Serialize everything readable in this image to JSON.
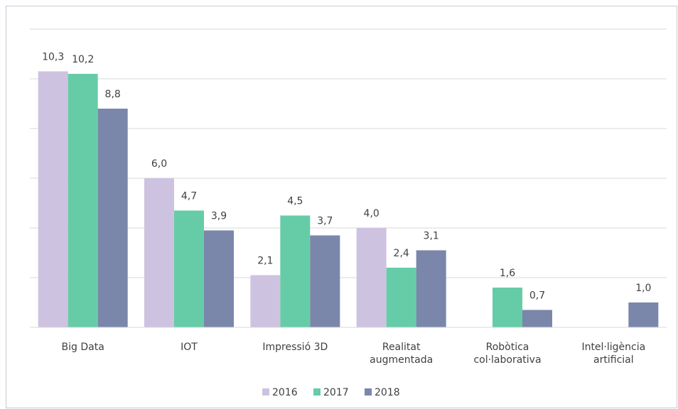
{
  "chart_data": {
    "type": "bar",
    "categories": [
      "Big Data",
      "IOT",
      "Impressió 3D",
      "Realitat augmentada",
      "Robòtica col·laborativa",
      "Intel·ligència artificial"
    ],
    "series": [
      {
        "name": "2016",
        "color": "#cdc3e0",
        "values": [
          10.3,
          6.0,
          2.1,
          4.0,
          null,
          null
        ],
        "value_labels": [
          "10,3",
          "6,0",
          "2,1",
          "4,0",
          null,
          null
        ]
      },
      {
        "name": "2017",
        "color": "#66cca8",
        "values": [
          10.2,
          4.7,
          4.5,
          2.4,
          1.6,
          null
        ],
        "value_labels": [
          "10,2",
          "4,7",
          "4,5",
          "2,4",
          "1,6",
          null
        ]
      },
      {
        "name": "2018",
        "color": "#7a86aa",
        "values": [
          8.8,
          3.9,
          3.7,
          3.1,
          0.7,
          1.0
        ],
        "value_labels": [
          "8,8",
          "3,9",
          "3,7",
          "3,1",
          "0,7",
          "1,0"
        ]
      }
    ],
    "ylim": [
      0,
      12
    ],
    "yticks": [
      0,
      2,
      4,
      6,
      8,
      10,
      12
    ],
    "grid": true,
    "legend": "bottom"
  }
}
